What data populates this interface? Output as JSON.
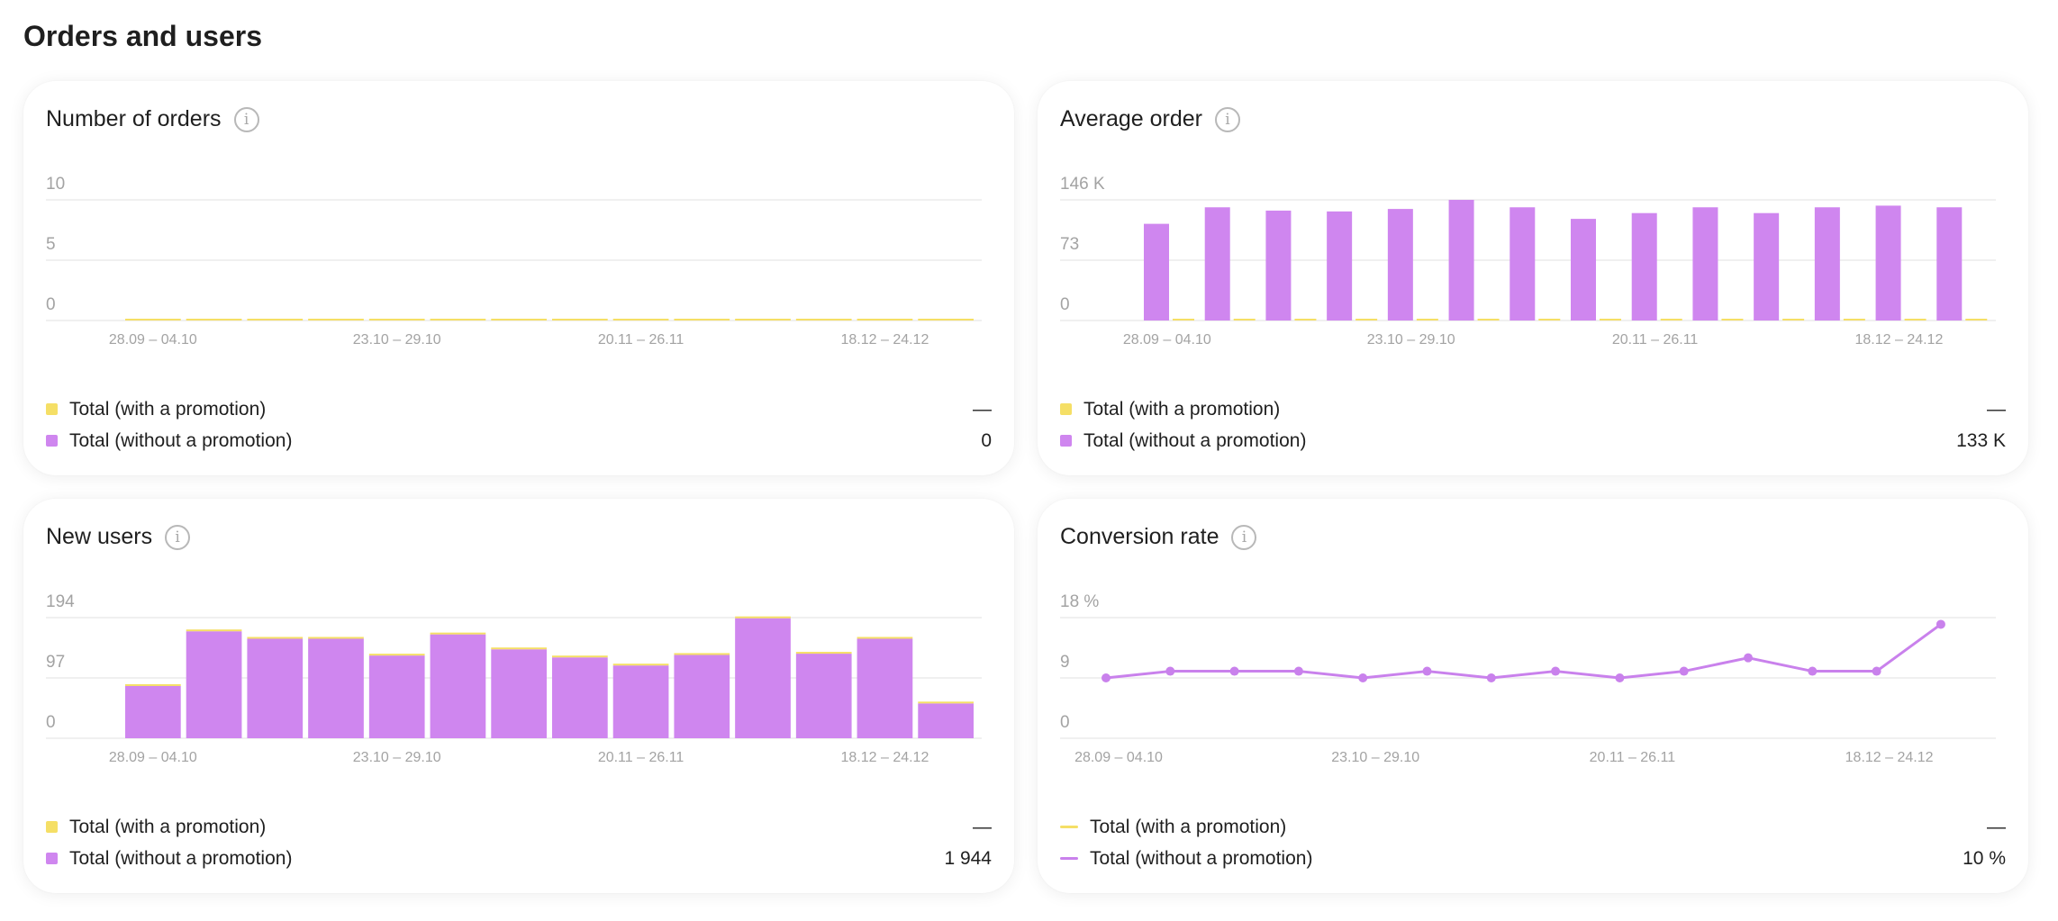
{
  "page": {
    "title": "Orders and users"
  },
  "colors": {
    "promo": "#f5df66",
    "no_promo": "#cf86ef",
    "no_promo_line": "#c981ec",
    "grid": "#ececec",
    "tick": "#a3a3a3"
  },
  "cards": [
    {
      "id": "orders",
      "title": "Number of orders",
      "legend": [
        {
          "label": "Total (with a promotion)",
          "value": "—"
        },
        {
          "label": "Total (without a promotion)",
          "value": "0"
        }
      ]
    },
    {
      "id": "avg",
      "title": "Average order",
      "legend": [
        {
          "label": "Total (with a promotion)",
          "value": "—"
        },
        {
          "label": "Total (without a promotion)",
          "value": "133 K"
        }
      ]
    },
    {
      "id": "users",
      "title": "New users",
      "legend": [
        {
          "label": "Total (with a promotion)",
          "value": "—"
        },
        {
          "label": "Total (without a promotion)",
          "value": "1 944"
        }
      ]
    },
    {
      "id": "conv",
      "title": "Conversion rate",
      "legend": [
        {
          "label": "Total (with a promotion)",
          "value": "—"
        },
        {
          "label": "Total (without a promotion)",
          "value": "10 %"
        }
      ]
    }
  ],
  "chart_data": [
    {
      "type": "bar",
      "title": "Number of orders",
      "yticks": [
        "10",
        "5",
        "0"
      ],
      "ylim": [
        0,
        10
      ],
      "xtick_labels": [
        "28.09 – 04.10",
        "23.10 – 29.10",
        "20.11 – 26.11",
        "18.12 – 24.12"
      ],
      "xtick_index": [
        0,
        4,
        8,
        12
      ],
      "series": [
        {
          "name": "Total (with a promotion)",
          "values": [
            0,
            0,
            0,
            0,
            0,
            0,
            0,
            0,
            0,
            0,
            0,
            0,
            0,
            0
          ]
        },
        {
          "name": "Total (without a promotion)",
          "values": [
            0,
            0,
            0,
            0,
            0,
            0,
            0,
            0,
            0,
            0,
            0,
            0,
            0,
            0
          ]
        }
      ],
      "stacked": true
    },
    {
      "type": "bar",
      "title": "Average order",
      "yticks": [
        "146 K",
        "73",
        "0"
      ],
      "ylim": [
        0,
        146
      ],
      "xtick_labels": [
        "28.09 – 04.10",
        "23.10 – 29.10",
        "20.11 – 26.11",
        "18.12 – 24.12"
      ],
      "xtick_index": [
        0,
        4,
        8,
        12
      ],
      "series": [
        {
          "name": "Total (with a promotion)",
          "values": [
            0,
            0,
            0,
            0,
            0,
            0,
            0,
            0,
            0,
            0,
            0,
            0,
            0,
            0
          ]
        },
        {
          "name": "Total (without a promotion)",
          "values": [
            117,
            137,
            133,
            132,
            135,
            146,
            137,
            123,
            130,
            137,
            130,
            137,
            139,
            137
          ]
        }
      ],
      "stacked": false
    },
    {
      "type": "bar",
      "title": "New users",
      "yticks": [
        "194",
        "97",
        "0"
      ],
      "ylim": [
        0,
        194
      ],
      "xtick_labels": [
        "28.09 – 04.10",
        "23.10 – 29.10",
        "20.11 – 26.11",
        "18.12 – 24.12"
      ],
      "xtick_index": [
        0,
        4,
        8,
        12
      ],
      "series": [
        {
          "name": "Total (with a promotion)",
          "values": [
            1,
            1,
            1,
            1,
            1,
            1,
            1,
            1,
            1,
            1,
            1,
            1,
            1,
            1
          ]
        },
        {
          "name": "Total (without a promotion)",
          "values": [
            84,
            172,
            160,
            160,
            133,
            167,
            143,
            130,
            117,
            134,
            193,
            136,
            160,
            56
          ]
        }
      ],
      "stacked": true
    },
    {
      "type": "line",
      "title": "Conversion rate",
      "yticks": [
        "18 %",
        "9",
        "0"
      ],
      "ylim": [
        0,
        18
      ],
      "xtick_labels": [
        "28.09 – 04.10",
        "23.10 – 29.10",
        "20.11 – 26.11",
        "18.12 – 24.12"
      ],
      "xtick_index": [
        0,
        4,
        8,
        12
      ],
      "series": [
        {
          "name": "Total (with a promotion)",
          "values": []
        },
        {
          "name": "Total (without a promotion)",
          "values": [
            9,
            10,
            10,
            10,
            9,
            10,
            9,
            10,
            9,
            10,
            12,
            10,
            10,
            17
          ]
        }
      ]
    }
  ]
}
